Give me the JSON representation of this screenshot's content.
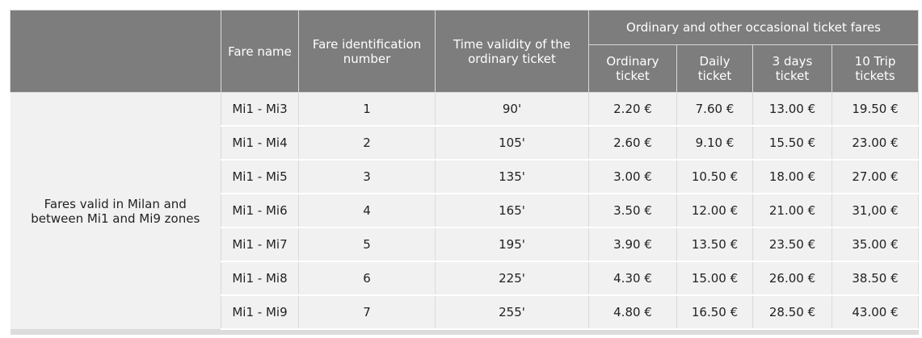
{
  "header": {
    "fare_name": "Fare name",
    "fare_id": "Fare identification number",
    "validity": "Time validity of the ordinary ticket",
    "group_title": "Ordinary and other occasional ticket fares",
    "col_ordinary": "Ordinary ticket",
    "col_daily": "Daily ticket",
    "col_3days": "3 days ticket",
    "col_10trip": "10 Trip tickets"
  },
  "group_label": "Fares valid in Milan and between Mi1 and Mi9 zones",
  "rows": [
    {
      "name": "Mi1 - Mi3",
      "id": "1",
      "validity": "90'",
      "ordinary": "2.20 €",
      "daily": "7.60 €",
      "three_days": "13.00 €",
      "ten_trip": "19.50 €"
    },
    {
      "name": "Mi1 - Mi4",
      "id": "2",
      "validity": "105'",
      "ordinary": "2.60 €",
      "daily": "9.10 €",
      "three_days": "15.50 €",
      "ten_trip": "23.00 €"
    },
    {
      "name": "Mi1 - Mi5",
      "id": "3",
      "validity": "135'",
      "ordinary": "3.00 €",
      "daily": "10.50 €",
      "three_days": "18.00 €",
      "ten_trip": "27.00 €"
    },
    {
      "name": "Mi1 - Mi6",
      "id": "4",
      "validity": "165'",
      "ordinary": "3.50 €",
      "daily": "12.00 €",
      "three_days": "21.00 €",
      "ten_trip": "31,00 €"
    },
    {
      "name": "Mi1 - Mi7",
      "id": "5",
      "validity": "195'",
      "ordinary": "3.90 €",
      "daily": "13.50 €",
      "three_days": "23.50 €",
      "ten_trip": "35.00 €"
    },
    {
      "name": "Mi1 - Mi8",
      "id": "6",
      "validity": "225'",
      "ordinary": "4.30 €",
      "daily": "15.00 €",
      "three_days": "26.00 €",
      "ten_trip": "38.50 €"
    },
    {
      "name": "Mi1 - Mi9",
      "id": "7",
      "validity": "255'",
      "ordinary": "4.80 €",
      "daily": "16.50 €",
      "three_days": "28.50 €",
      "ten_trip": "43.00 €"
    }
  ]
}
